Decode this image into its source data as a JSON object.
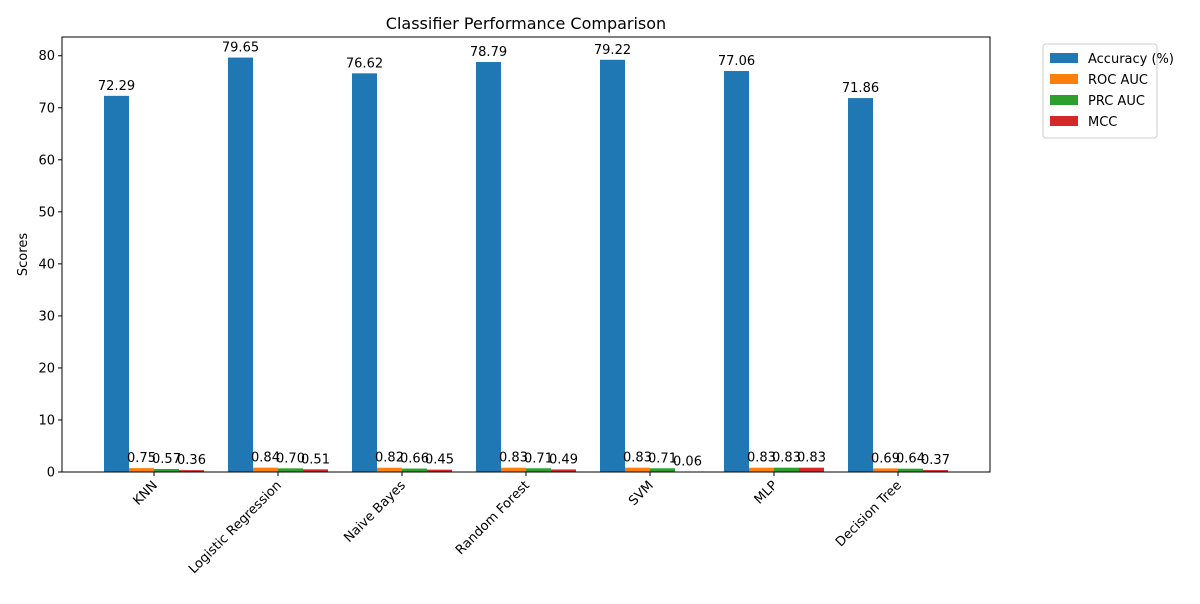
{
  "chart_data": {
    "type": "bar",
    "title": "Classifier Performance Comparison",
    "xlabel": "",
    "ylabel": "Scores",
    "ylim": [
      0,
      83.6
    ],
    "yticks": [
      0,
      10,
      20,
      30,
      40,
      50,
      60,
      70,
      80
    ],
    "grid": false,
    "legend_position": "outside-top-right",
    "categories": [
      "KNN",
      "Logistic Regression",
      "Naive Bayes",
      "Random Forest",
      "SVM",
      "MLP",
      "Decision Tree"
    ],
    "series": [
      {
        "name": "Accuracy (%)",
        "color": "#1f77b4",
        "values": [
          72.29,
          79.65,
          76.62,
          78.79,
          79.22,
          77.06,
          71.86
        ],
        "labels": [
          "72.29",
          "79.65",
          "76.62",
          "78.79",
          "79.22",
          "77.06",
          "71.86"
        ]
      },
      {
        "name": "ROC AUC",
        "color": "#ff7f0e",
        "values": [
          0.75,
          0.84,
          0.82,
          0.83,
          0.83,
          0.83,
          0.69
        ],
        "labels": [
          "0.75",
          "0.84",
          "0.82",
          "0.83",
          "0.83",
          "0.83",
          "0.69"
        ]
      },
      {
        "name": "PRC AUC",
        "color": "#2ca02c",
        "values": [
          0.57,
          0.7,
          0.66,
          0.71,
          0.71,
          0.83,
          0.64
        ],
        "labels": [
          "0.57",
          "0.70",
          "0.66",
          "0.71",
          "0.71",
          "0.83",
          "0.64"
        ]
      },
      {
        "name": "MCC",
        "color": "#d62728",
        "values": [
          0.36,
          0.51,
          0.45,
          0.49,
          0.06,
          0.83,
          0.37
        ],
        "labels": [
          "0.36",
          "0.51",
          "0.45",
          "0.49",
          "0.06",
          "0.83",
          "0.37"
        ]
      }
    ]
  }
}
